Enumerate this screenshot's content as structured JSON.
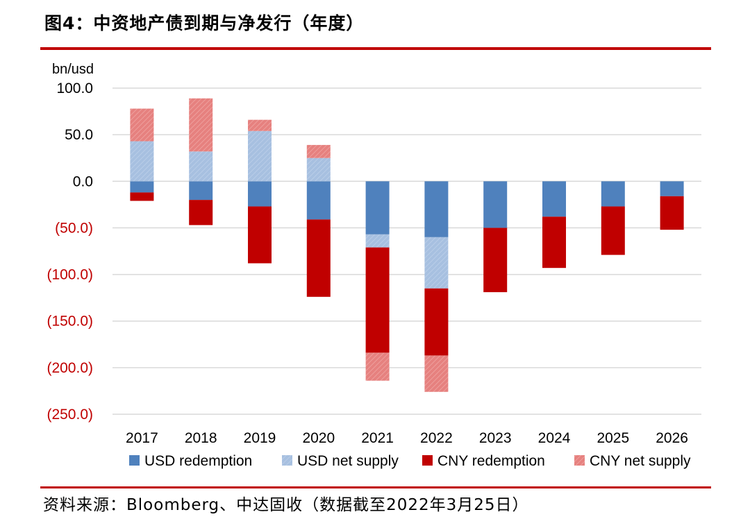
{
  "title": "图4：中资地产债到期与净发行（年度）",
  "source": "资料来源：Bloomberg、中达固收（数据截至2022年3月25日）",
  "colors": {
    "accent_rule": "#c00000",
    "negative_tick": "#c00000",
    "grid": "#d9d9d9"
  },
  "chart_data": {
    "type": "bar",
    "stacked": true,
    "ylabel": "bn/usd",
    "ylim": [
      -250,
      100
    ],
    "yticks": [
      100,
      50,
      0,
      -50,
      -100,
      -150,
      -200,
      -250
    ],
    "ytick_labels": [
      "100.0",
      "50.0",
      "0.0",
      "(50.0)",
      "(100.0)",
      "(150.0)",
      "(200.0)",
      "(250.0)"
    ],
    "grid": true,
    "legend_position": "bottom",
    "categories": [
      "2017",
      "2018",
      "2019",
      "2020",
      "2021",
      "2022",
      "2023",
      "2024",
      "2025",
      "2026"
    ],
    "series": [
      {
        "name": "USD redemption",
        "color": "#4f81bd",
        "hatched": false,
        "values": [
          -12,
          -20,
          -27,
          -41,
          -57,
          -60,
          -50,
          -38,
          -27,
          -16
        ]
      },
      {
        "name": "USD net supply",
        "color": "#a7c0e0",
        "hatched": true,
        "values": [
          43,
          32,
          54,
          25,
          -14,
          -55,
          0,
          0,
          0,
          0
        ]
      },
      {
        "name": "CNY redemption",
        "color": "#c00000",
        "hatched": false,
        "values": [
          -9,
          -27,
          -61,
          -83,
          -113,
          -72,
          -69,
          -55,
          -52,
          -36
        ]
      },
      {
        "name": "CNY net supply",
        "color": "#e6817f",
        "hatched": true,
        "values": [
          35,
          57,
          12,
          14,
          -30,
          -39,
          0,
          0,
          0,
          0
        ]
      }
    ]
  }
}
